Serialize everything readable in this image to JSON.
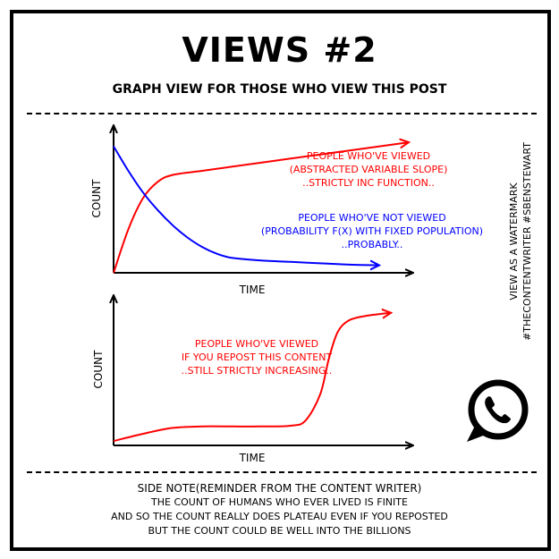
{
  "page": {
    "title": "VIEWS #2",
    "subtitle": "GRAPH VIEW FOR THOSE WHO VIEW THIS POST",
    "watermark": [
      "VIEW AS A WATERMARK",
      "#THECONTENTWRITER #SBENSTEWART"
    ],
    "logo_icon": "whatsapp-icon",
    "side_note": [
      "SIDE NOTE(REMINDER FROM THE CONTENT WRITER)",
      "THE COUNT OF HUMANS WHO EVER LIVED IS FINITE",
      "AND SO THE COUNT REALLY DOES PLATEAU EVEN IF YOU REPOSTED",
      "BUT THE COUNT COULD BE WELL INTO THE BILLIONS"
    ]
  },
  "colors": {
    "red": "#ff0000",
    "blue": "#0000ff",
    "ink": "#000000"
  },
  "chart_data": [
    {
      "type": "line",
      "xlabel": "TIME",
      "ylabel": "COUNT",
      "xlim": [
        0,
        10
      ],
      "ylim": [
        0,
        10
      ],
      "series": [
        {
          "color": "#ff0000",
          "annotation": [
            "PEOPLE WHO'VE VIEWED",
            "(ABSTRACTED VARIABLE SLOPE)",
            "..STRICTLY INC FUNCTION.."
          ],
          "points": [
            [
              0,
              0
            ],
            [
              0.5,
              3.2
            ],
            [
              1,
              5.5
            ],
            [
              1.5,
              6.7
            ],
            [
              2,
              7.2
            ],
            [
              3,
              7.5
            ],
            [
              4,
              7.8
            ],
            [
              6,
              8.4
            ],
            [
              8,
              9.0
            ],
            [
              10,
              9.6
            ]
          ]
        },
        {
          "color": "#0000ff",
          "annotation": [
            "PEOPLE WHO'VE NOT VIEWED",
            "(PROBABILITY F(X) WITH FIXED POPULATION)",
            "..PROBABLY.."
          ],
          "points": [
            [
              0,
              9.3
            ],
            [
              0.5,
              7.5
            ],
            [
              1,
              5.9
            ],
            [
              1.5,
              4.6
            ],
            [
              2,
              3.5
            ],
            [
              2.5,
              2.6
            ],
            [
              3,
              1.9
            ],
            [
              3.5,
              1.4
            ],
            [
              4,
              1.1
            ],
            [
              5,
              0.9
            ],
            [
              6,
              0.8
            ],
            [
              7,
              0.7
            ],
            [
              8,
              0.6
            ],
            [
              9,
              0.55
            ]
          ]
        }
      ]
    },
    {
      "type": "line",
      "xlabel": "TIME",
      "ylabel": "COUNT",
      "xlim": [
        0,
        10
      ],
      "ylim": [
        0,
        10
      ],
      "series": [
        {
          "color": "#ff0000",
          "annotation": [
            "PEOPLE WHO'VE VIEWED",
            "IF YOU REPOST THIS CONTENT",
            "..STILL STRICTLY INCREASING.."
          ],
          "points": [
            [
              0,
              0.3
            ],
            [
              1,
              0.8
            ],
            [
              2,
              1.2
            ],
            [
              3,
              1.3
            ],
            [
              4,
              1.3
            ],
            [
              5,
              1.3
            ],
            [
              6,
              1.35
            ],
            [
              6.5,
              1.7
            ],
            [
              7,
              3.5
            ],
            [
              7.3,
              6
            ],
            [
              7.6,
              7.8
            ],
            [
              8,
              8.6
            ],
            [
              8.6,
              8.9
            ],
            [
              9.4,
              9.1
            ]
          ]
        }
      ]
    }
  ]
}
